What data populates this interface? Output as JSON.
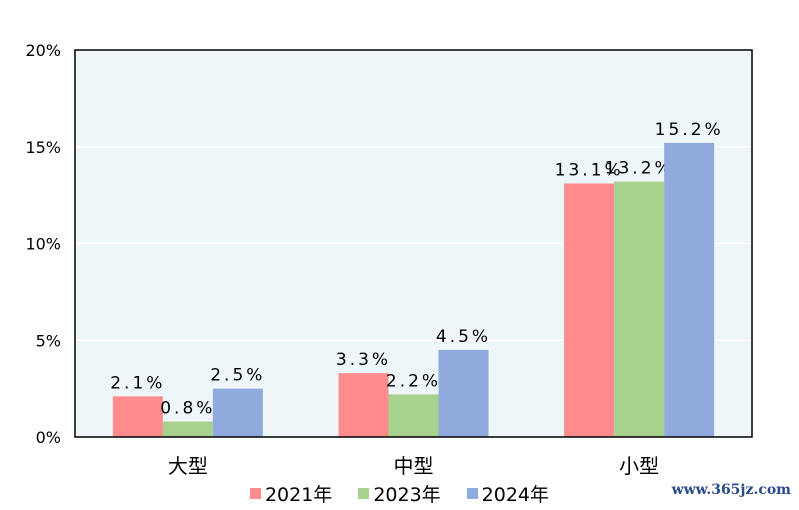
{
  "chart_data": {
    "type": "bar",
    "categories": [
      "大型",
      "中型",
      "小型"
    ],
    "series": [
      {
        "name": "2021年",
        "values": [
          2.1,
          3.3,
          13.1
        ],
        "labels": [
          "2.1%",
          "3.3%",
          "13.1%"
        ],
        "color": "#ff8c8c"
      },
      {
        "name": "2023年",
        "values": [
          0.8,
          2.2,
          13.2
        ],
        "labels": [
          "0.8%",
          "2.2%",
          "13.2%"
        ],
        "color": "#a9d18e"
      },
      {
        "name": "2024年",
        "values": [
          2.5,
          4.5,
          15.2
        ],
        "labels": [
          "2.5%",
          "4.5%",
          "15.2%"
        ],
        "color": "#8faadc"
      }
    ],
    "ylim": [
      0,
      20
    ],
    "yticks": [
      "0%",
      "5%",
      "10%",
      "15%",
      "20%"
    ],
    "grid": true,
    "legend_position": "bottom",
    "plot_background": "#eef6fa"
  },
  "watermark": "www.365jz.com"
}
